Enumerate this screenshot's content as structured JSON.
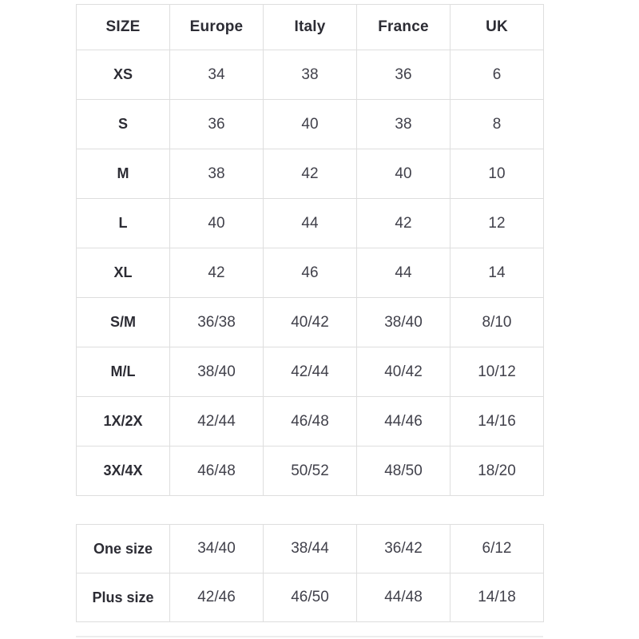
{
  "colors": {
    "background": "#ffffff",
    "border": "#dedede",
    "heading_text": "#2c2c34",
    "value_text": "#41414b"
  },
  "size_table": {
    "headers": [
      "SIZE",
      "Europe",
      "Italy",
      "France",
      "UK"
    ],
    "rows": [
      {
        "label": "XS",
        "values": [
          "34",
          "38",
          "36",
          "6"
        ]
      },
      {
        "label": "S",
        "values": [
          "36",
          "40",
          "38",
          "8"
        ]
      },
      {
        "label": "M",
        "values": [
          "38",
          "42",
          "40",
          "10"
        ]
      },
      {
        "label": "L",
        "values": [
          "40",
          "44",
          "42",
          "12"
        ]
      },
      {
        "label": "XL",
        "values": [
          "42",
          "46",
          "44",
          "14"
        ]
      },
      {
        "label": "S/M",
        "values": [
          "36/38",
          "40/42",
          "38/40",
          "8/10"
        ]
      },
      {
        "label": "M/L",
        "values": [
          "38/40",
          "42/44",
          "40/42",
          "10/12"
        ]
      },
      {
        "label": "1X/2X",
        "values": [
          "42/44",
          "46/48",
          "44/46",
          "14/16"
        ]
      },
      {
        "label": "3X/4X",
        "values": [
          "46/48",
          "50/52",
          "48/50",
          "18/20"
        ]
      }
    ]
  },
  "special_table": {
    "rows": [
      {
        "label": "One size",
        "values": [
          "34/40",
          "38/44",
          "36/42",
          "6/12"
        ]
      },
      {
        "label": "Plus size",
        "values": [
          "42/46",
          "46/50",
          "44/48",
          "14/18"
        ]
      }
    ]
  }
}
